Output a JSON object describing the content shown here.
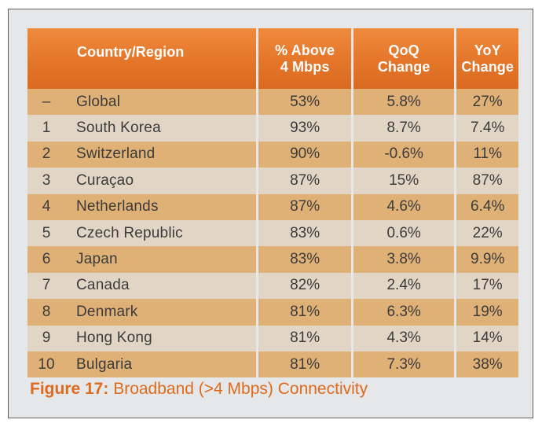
{
  "table": {
    "headers": {
      "country": "Country/Region",
      "above_line1": "% Above",
      "above_line2": "4 Mbps",
      "qoq_line1": "QoQ",
      "qoq_line2": "Change",
      "yoy_line1": "YoY",
      "yoy_line2": "Change"
    },
    "rows": [
      {
        "rank": "–",
        "country": "Global",
        "above": "53%",
        "qoq": "5.8%",
        "yoy": "27%"
      },
      {
        "rank": "1",
        "country": "South Korea",
        "above": "93%",
        "qoq": "8.7%",
        "yoy": "7.4%"
      },
      {
        "rank": "2",
        "country": "Switzerland",
        "above": "90%",
        "qoq": "-0.6%",
        "yoy": "11%"
      },
      {
        "rank": "3",
        "country": "Curaçao",
        "above": "87%",
        "qoq": "15%",
        "yoy": "87%"
      },
      {
        "rank": "4",
        "country": "Netherlands",
        "above": "87%",
        "qoq": "4.6%",
        "yoy": "6.4%"
      },
      {
        "rank": "5",
        "country": "Czech Republic",
        "above": "83%",
        "qoq": "0.6%",
        "yoy": "22%"
      },
      {
        "rank": "6",
        "country": "Japan",
        "above": "83%",
        "qoq": "3.8%",
        "yoy": "9.9%"
      },
      {
        "rank": "7",
        "country": "Canada",
        "above": "82%",
        "qoq": "2.4%",
        "yoy": "17%"
      },
      {
        "rank": "8",
        "country": "Denmark",
        "above": "81%",
        "qoq": "6.3%",
        "yoy": "19%"
      },
      {
        "rank": "9",
        "country": "Hong Kong",
        "above": "81%",
        "qoq": "4.3%",
        "yoy": "14%"
      },
      {
        "rank": "10",
        "country": "Bulgaria",
        "above": "81%",
        "qoq": "7.3%",
        "yoy": "38%"
      }
    ]
  },
  "caption": {
    "label": "Figure 17:",
    "text": " Broadband (>4 Mbps) Connectivity"
  },
  "colors": {
    "header": "#e4762a",
    "row_odd": "#e0b176",
    "row_even": "#e1d6c6",
    "panel": "#e6e7e9",
    "caption": "#de6a1e"
  }
}
